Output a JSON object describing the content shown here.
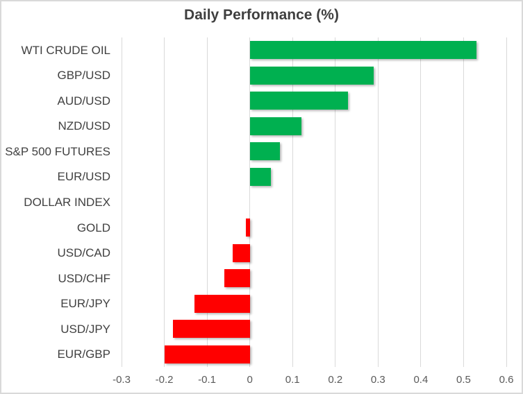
{
  "chart_data": {
    "type": "bar",
    "orientation": "horizontal",
    "title": "Daily Performance (%)",
    "xlabel": "",
    "ylabel": "",
    "categories": [
      "WTI CRUDE OIL",
      "GBP/USD",
      "AUD/USD",
      "NZD/USD",
      "S&P 500 FUTURES",
      "EUR/USD",
      "DOLLAR INDEX",
      "GOLD",
      "USD/CAD",
      "USD/CHF",
      "EUR/JPY",
      "USD/JPY",
      "EUR/GBP"
    ],
    "values": [
      0.53,
      0.29,
      0.23,
      0.12,
      0.07,
      0.05,
      0.0,
      -0.01,
      -0.04,
      -0.06,
      -0.13,
      -0.18,
      -0.2
    ],
    "xlim": [
      -0.3,
      0.6
    ],
    "x_tick_values": [
      -0.3,
      -0.2,
      -0.1,
      0,
      0.1,
      0.2,
      0.3,
      0.4,
      0.5,
      0.6
    ],
    "x_ticks": [
      "-0.3",
      "-0.2",
      "-0.1",
      "0",
      "0.1",
      "0.2",
      "0.3",
      "0.4",
      "0.5",
      "0.6"
    ],
    "grid": "vertical-gridlines-on",
    "legend": "none",
    "colors": {
      "positive": "#00B050",
      "negative": "#FF0000",
      "gridline": "#D9D9D9",
      "title": "#3F3F3F",
      "category_label": "#404040",
      "tick_label": "#595959",
      "border": "#D9D9D9",
      "background": "#FFFFFF"
    }
  }
}
